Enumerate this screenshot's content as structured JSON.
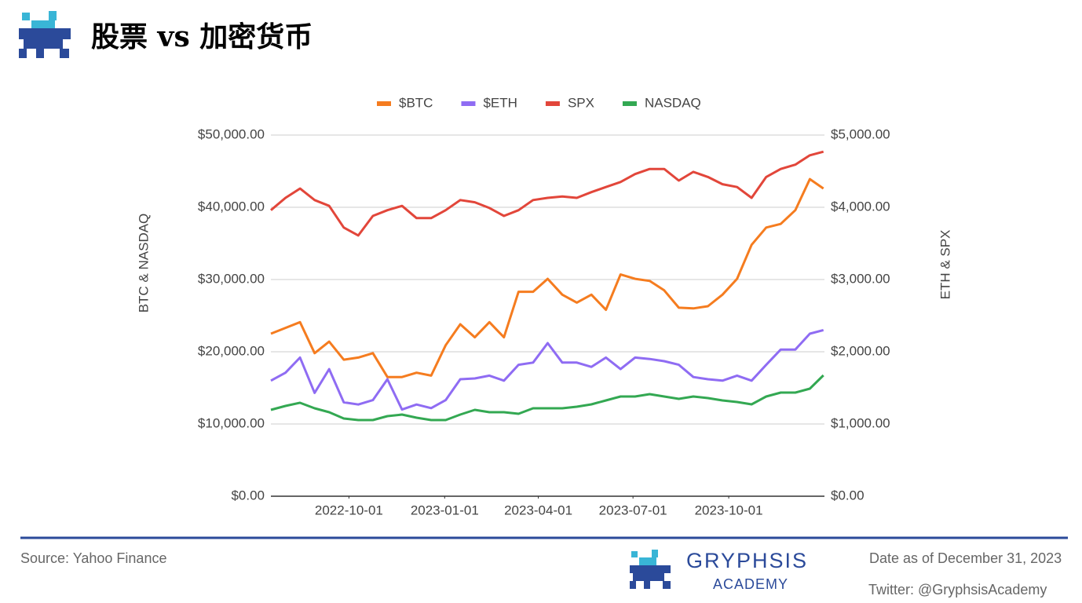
{
  "header": {
    "title": "股票 vs 加密货币"
  },
  "chart_data": {
    "type": "line",
    "y_label": "BTC & NASDAQ",
    "y2_label": "ETH & SPX",
    "x": [
      "2022-07-18",
      "2022-08-01",
      "2022-08-15",
      "2022-08-29",
      "2022-09-12",
      "2022-09-26",
      "2022-10-10",
      "2022-10-24",
      "2022-11-07",
      "2022-11-21",
      "2022-12-05",
      "2022-12-19",
      "2023-01-02",
      "2023-01-16",
      "2023-01-30",
      "2023-02-13",
      "2023-02-27",
      "2023-03-13",
      "2023-03-27",
      "2023-04-10",
      "2023-04-24",
      "2023-05-08",
      "2023-05-22",
      "2023-06-05",
      "2023-06-19",
      "2023-07-03",
      "2023-07-17",
      "2023-07-31",
      "2023-08-14",
      "2023-08-28",
      "2023-09-11",
      "2023-09-25",
      "2023-10-09",
      "2023-10-23",
      "2023-11-06",
      "2023-11-20",
      "2023-12-04",
      "2023-12-18",
      "2023-12-31"
    ],
    "xlim": [
      "2022-07-18",
      "2024-01-01"
    ],
    "xticks": [
      "2022-10-01",
      "2023-01-01",
      "2023-04-01",
      "2023-07-01",
      "2023-10-01"
    ],
    "ylim": [
      0,
      50000
    ],
    "yticks": [
      {
        "value": 0,
        "label": "$0.00"
      },
      {
        "value": 10000,
        "label": "$10,000.00"
      },
      {
        "value": 20000,
        "label": "$20,000.00"
      },
      {
        "value": 30000,
        "label": "$30,000.00"
      },
      {
        "value": 40000,
        "label": "$40,000.00"
      },
      {
        "value": 50000,
        "label": "$50,000.00"
      }
    ],
    "y2lim": [
      0,
      5000
    ],
    "y2ticks": [
      {
        "value": 0,
        "label": "$0.00"
      },
      {
        "value": 1000,
        "label": "$1,000.00"
      },
      {
        "value": 2000,
        "label": "$2,000.00"
      },
      {
        "value": 3000,
        "label": "$3,000.00"
      },
      {
        "value": 4000,
        "label": "$4,000.00"
      },
      {
        "value": 5000,
        "label": "$5,000.00"
      }
    ],
    "grid": true,
    "legend": "top",
    "series": [
      {
        "name": "$BTC",
        "color": "#f57c1f",
        "axis": "y",
        "values": [
          22500,
          23300,
          24100,
          19800,
          21400,
          18900,
          19200,
          19800,
          16500,
          16500,
          17100,
          16700,
          20900,
          23800,
          22000,
          24100,
          22000,
          28300,
          28300,
          30100,
          27900,
          26800,
          27900,
          25800,
          30700,
          30100,
          29800,
          28500,
          26100,
          26000,
          26300,
          27900,
          30100,
          34800,
          37200,
          37700,
          39600,
          43900,
          42600
        ]
      },
      {
        "name": "$ETH",
        "color": "#8f6cf3",
        "axis": "y2",
        "values": [
          1600,
          1710,
          1920,
          1430,
          1760,
          1300,
          1270,
          1330,
          1620,
          1200,
          1270,
          1220,
          1330,
          1620,
          1630,
          1670,
          1600,
          1820,
          1850,
          2120,
          1850,
          1850,
          1790,
          1920,
          1760,
          1920,
          1900,
          1870,
          1820,
          1650,
          1620,
          1600,
          1670,
          1600,
          1820,
          2030,
          2030,
          2250,
          2300
        ]
      },
      {
        "name": "SPX",
        "color": "#e2463a",
        "axis": "y2",
        "values": [
          3960,
          4130,
          4260,
          4100,
          4020,
          3720,
          3610,
          3880,
          3960,
          4020,
          3850,
          3850,
          3960,
          4100,
          4070,
          3990,
          3880,
          3960,
          4100,
          4130,
          4150,
          4130,
          4210,
          4280,
          4350,
          4460,
          4530,
          4530,
          4370,
          4490,
          4420,
          4320,
          4280,
          4130,
          4420,
          4530,
          4590,
          4720,
          4770
        ]
      },
      {
        "name": "NASDAQ",
        "color": "#33a852",
        "axis": "y",
        "values": [
          11960,
          12500,
          12930,
          12170,
          11630,
          10760,
          10540,
          10540,
          11090,
          11300,
          10870,
          10540,
          10540,
          11300,
          11960,
          11630,
          11630,
          11410,
          12170,
          12170,
          12170,
          12390,
          12720,
          13260,
          13800,
          13800,
          14130,
          13800,
          13480,
          13800,
          13590,
          13260,
          13040,
          12720,
          13800,
          14350,
          14350,
          14890,
          16740
        ]
      }
    ]
  },
  "footer": {
    "source": "Source: Yahoo Finance",
    "brand": "GRYPHSIS",
    "brand_sub": "ACADEMY",
    "date": "Date as of December 31, 2023",
    "twitter": "Twitter: @GryphsisAcademy"
  }
}
